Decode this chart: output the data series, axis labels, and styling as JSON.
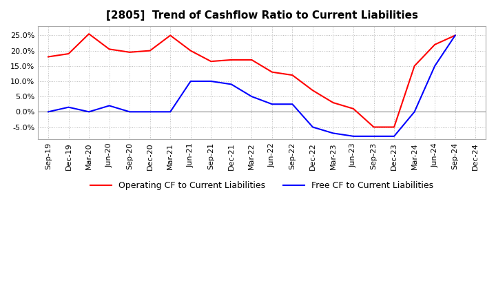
{
  "title": "[2805]  Trend of Cashflow Ratio to Current Liabilities",
  "x_labels": [
    "Sep-19",
    "Dec-19",
    "Mar-20",
    "Jun-20",
    "Sep-20",
    "Dec-20",
    "Mar-21",
    "Jun-21",
    "Sep-21",
    "Dec-21",
    "Mar-22",
    "Jun-22",
    "Sep-22",
    "Dec-22",
    "Mar-23",
    "Jun-23",
    "Sep-23",
    "Dec-23",
    "Mar-24",
    "Jun-24",
    "Sep-24",
    "Dec-24"
  ],
  "operating_cf": [
    0.18,
    0.19,
    0.255,
    0.205,
    0.195,
    0.2,
    0.25,
    0.2,
    0.165,
    0.17,
    0.17,
    0.13,
    0.12,
    0.07,
    0.03,
    0.01,
    -0.05,
    -0.05,
    0.15,
    0.22,
    0.25,
    null
  ],
  "free_cf": [
    0.0,
    0.015,
    0.0,
    0.02,
    0.0,
    0.0,
    0.0,
    0.1,
    0.1,
    0.09,
    0.05,
    0.025,
    0.025,
    -0.05,
    -0.07,
    -0.08,
    -0.08,
    -0.08,
    0.0,
    0.15,
    0.25,
    null
  ],
  "ylim": [
    -0.09,
    0.28
  ],
  "yticks": [
    -0.05,
    0.0,
    0.05,
    0.1,
    0.15,
    0.2,
    0.25
  ],
  "operating_color": "#ff0000",
  "free_color": "#0000ff",
  "grid_color": "#bbbbbb",
  "background_color": "#ffffff",
  "title_fontsize": 11,
  "tick_fontsize": 8,
  "legend_labels": [
    "Operating CF to Current Liabilities",
    "Free CF to Current Liabilities"
  ]
}
